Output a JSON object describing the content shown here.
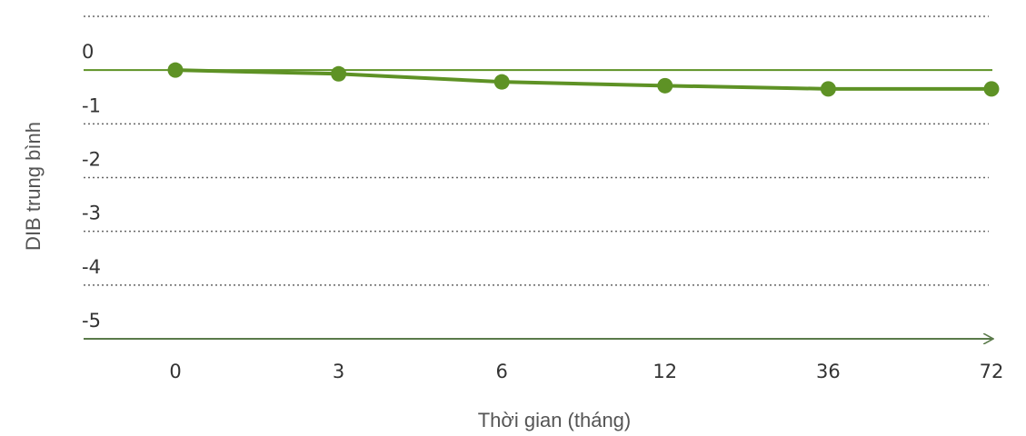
{
  "chart_data": {
    "type": "line",
    "x_label": "Thời gian (tháng)",
    "y_label": "DIB trung bình",
    "categories": [
      "0",
      "3",
      "6",
      "12",
      "36",
      "72"
    ],
    "series": [
      {
        "name": "DIB",
        "color": "#5e9225",
        "values": [
          0,
          -0.07,
          -0.22,
          -0.29,
          -0.35,
          -0.35
        ]
      }
    ],
    "ylim": [
      -5,
      1
    ],
    "yticks": [
      0,
      -1,
      -2,
      -3,
      -4,
      -5
    ],
    "grid": true
  }
}
